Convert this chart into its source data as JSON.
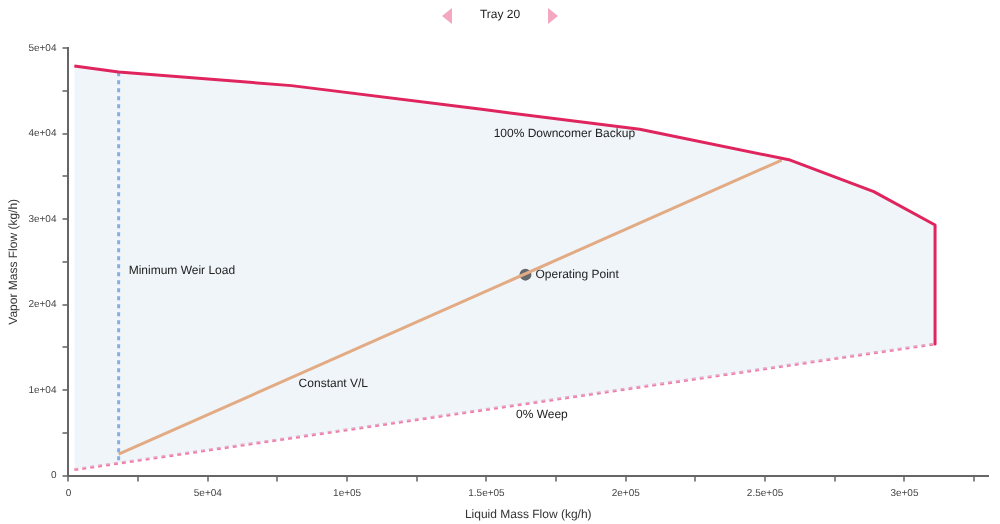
{
  "chart_data": {
    "type": "line",
    "title": "Tray 20",
    "xlabel": "Liquid Mass Flow (kg/h)",
    "ylabel": "Vapor Mass Flow (kg/h)",
    "xlim": [
      0,
      330000
    ],
    "ylim": [
      0,
      50000
    ],
    "xticks": [
      0,
      {
        "value": 25000,
        "label": null
      },
      {
        "value": 50000,
        "label": "5e+04"
      },
      {
        "value": 75000,
        "label": null
      },
      {
        "value": 100000,
        "label": "1e+05"
      },
      {
        "value": 125000,
        "label": null
      },
      {
        "value": 150000,
        "label": "1.5e+05"
      },
      {
        "value": 175000,
        "label": null
      },
      {
        "value": 200000,
        "label": "2e+05"
      },
      {
        "value": 225000,
        "label": null
      },
      {
        "value": 250000,
        "label": "2.5e+05"
      },
      {
        "value": 275000,
        "label": null
      },
      {
        "value": 300000,
        "label": "3e+05"
      },
      {
        "value": 325000,
        "label": null
      }
    ],
    "yticks": [
      0,
      {
        "value": 5000,
        "label": null
      },
      {
        "value": 10000,
        "label": "1e+04"
      },
      {
        "value": 15000,
        "label": null
      },
      {
        "value": 20000,
        "label": "2e+04"
      },
      {
        "value": 25000,
        "label": null
      },
      {
        "value": 30000,
        "label": "3e+04"
      },
      {
        "value": 35000,
        "label": null
      },
      {
        "value": 40000,
        "label": "4e+04"
      },
      {
        "value": 45000,
        "label": null
      },
      {
        "value": 50000,
        "label": "5e+04"
      }
    ],
    "grid": false,
    "legend": false,
    "series": [
      {
        "type": "area",
        "color": "#e0245e",
        "x": [
          2100,
          18000,
          80000,
          149000,
          205000,
          259000,
          289000,
          311000,
          311000
        ],
        "values": [
          47900,
          47200,
          45600,
          42800,
          40500,
          36900,
          33200,
          29300,
          15400
        ]
      },
      {
        "type": "line",
        "color": "#f07aa8",
        "line_style": "dotted",
        "x": [
          2100,
          311000
        ],
        "values": [
          700,
          15400
        ]
      },
      {
        "type": "line",
        "color": "#3b7fd9",
        "line_style": "dotted",
        "x": [
          18000,
          18000
        ],
        "values": [
          1800,
          47200
        ]
      },
      {
        "type": "line",
        "color": "#e8782a",
        "x": [
          18000,
          256000
        ],
        "values": [
          2500,
          36900
        ]
      },
      {
        "type": "scatter",
        "color": "#000000",
        "marker": "circle",
        "x": [
          164000
        ],
        "values": [
          23500
        ]
      }
    ],
    "annotations": [
      {
        "text": "100% Downcomer Backup",
        "x": 149000,
        "y": 42800
      },
      {
        "text": "Minimum Weir Load",
        "x": 18000,
        "y": 24000
      },
      {
        "text": "Constant V/L",
        "x": 79000,
        "y": 10800
      },
      {
        "text": "Operating Point",
        "x": 164000,
        "y": 23500
      },
      {
        "text": "0% Weep",
        "x": 157000,
        "y": 7100
      }
    ]
  }
}
